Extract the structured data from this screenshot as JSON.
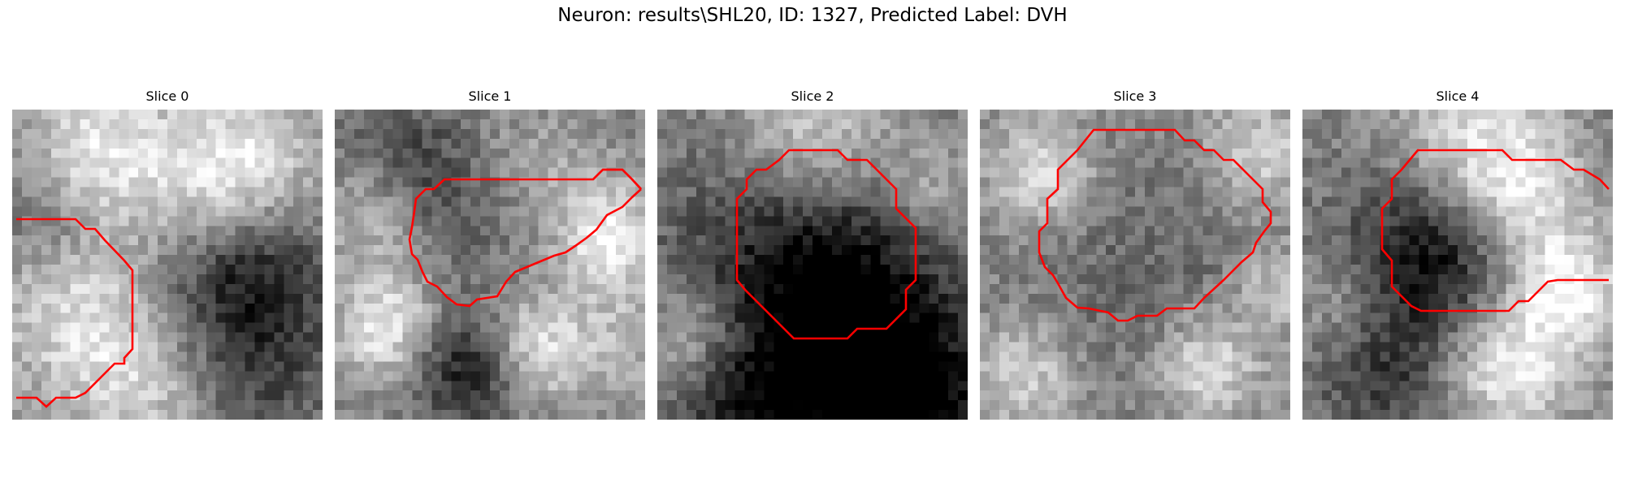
{
  "figure": {
    "title": "Neuron: results\\SHL20, ID: 1327, Predicted Label: DVH"
  },
  "panels": [
    {
      "title": "Slice 0",
      "contour_color": "#ff0000"
    },
    {
      "title": "Slice 1",
      "contour_color": "#ff0000"
    },
    {
      "title": "Slice 2",
      "contour_color": "#ff0000"
    },
    {
      "title": "Slice 3",
      "contour_color": "#ff0000"
    },
    {
      "title": "Slice 4",
      "contour_color": "#ff0000"
    }
  ]
}
